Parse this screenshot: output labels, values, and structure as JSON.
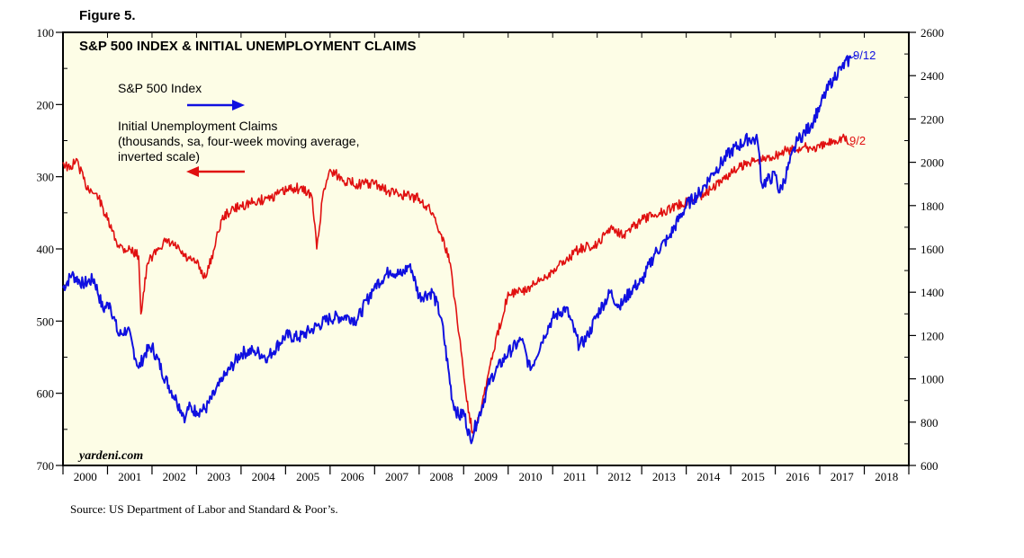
{
  "figure_label": "Figure 5.",
  "source": "Source: US Department of Labor and Standard & Poor’s.",
  "watermark": "yardeni.com",
  "colors": {
    "background": "#fdfde6",
    "sp500": "#1010e0",
    "claims": "#e01010",
    "frame": "#000000"
  },
  "chart_data": {
    "type": "line",
    "title": "S&P 500 INDEX & INITIAL UNEMPLOYMENT CLAIMS",
    "x_range": [
      2000.0,
      2019.0
    ],
    "x_tick_labels": [
      "2000",
      "2001",
      "2002",
      "2003",
      "2004",
      "2005",
      "2006",
      "2007",
      "2008",
      "2009",
      "2010",
      "2011",
      "2012",
      "2013",
      "2014",
      "2015",
      "2016",
      "2017",
      "2018"
    ],
    "left_axis": {
      "label": "Initial Unemployment Claims (thousands, sa, four-week moving average, inverted scale)",
      "inverted": true,
      "ylim": [
        100,
        700
      ],
      "ticks": [
        100,
        200,
        300,
        400,
        500,
        600,
        700
      ]
    },
    "right_axis": {
      "label": "S&P 500 Index",
      "ylim": [
        600,
        2600
      ],
      "ticks": [
        600,
        800,
        1000,
        1200,
        1400,
        1600,
        1800,
        2000,
        2200,
        2400,
        2600
      ]
    },
    "legend": [
      {
        "text": "S&P 500 Index",
        "arrow": "right"
      },
      {
        "lines": [
          "Initial Unemployment Claims",
          "(thousands, sa, four-week moving average,",
          "inverted scale)"
        ],
        "arrow": "left"
      }
    ],
    "annotations": {
      "sp500_end": "9/12",
      "claims_end": "9/2"
    },
    "series": [
      {
        "name": "S&P 500 Index",
        "axis": "right",
        "x": [
          2000.0,
          2000.2,
          2000.45,
          2000.7,
          2000.9,
          2001.05,
          2001.25,
          2001.45,
          2001.7,
          2001.85,
          2002.0,
          2002.3,
          2002.55,
          2002.75,
          2002.8,
          2003.0,
          2003.2,
          2003.6,
          2004.0,
          2004.3,
          2004.6,
          2005.0,
          2005.3,
          2005.6,
          2006.0,
          2006.4,
          2006.6,
          2007.0,
          2007.35,
          2007.6,
          2007.8,
          2008.0,
          2008.3,
          2008.5,
          2008.75,
          2008.9,
          2009.0,
          2009.15,
          2009.3,
          2009.6,
          2010.0,
          2010.3,
          2010.5,
          2010.8,
          2011.0,
          2011.3,
          2011.6,
          2011.8,
          2012.0,
          2012.3,
          2012.5,
          2012.8,
          2013.0,
          2013.3,
          2013.6,
          2014.0,
          2014.3,
          2014.6,
          2015.0,
          2015.4,
          2015.6,
          2015.7,
          2016.0,
          2016.1,
          2016.5,
          2016.8,
          2017.0,
          2017.3,
          2017.5,
          2017.7
        ],
        "values": [
          1420,
          1480,
          1440,
          1460,
          1320,
          1350,
          1200,
          1230,
          1050,
          1120,
          1150,
          1000,
          900,
          820,
          870,
          850,
          860,
          1000,
          1120,
          1130,
          1100,
          1200,
          1190,
          1230,
          1280,
          1290,
          1270,
          1430,
          1500,
          1480,
          1530,
          1380,
          1400,
          1280,
          900,
          820,
          850,
          720,
          800,
          1000,
          1120,
          1180,
          1040,
          1200,
          1280,
          1330,
          1150,
          1200,
          1300,
          1400,
          1330,
          1420,
          1450,
          1580,
          1650,
          1800,
          1860,
          1950,
          2050,
          2110,
          2100,
          1900,
          1940,
          1860,
          2100,
          2170,
          2260,
          2390,
          2440,
          2480
        ]
      },
      {
        "name": "Initial Unemployment Claims",
        "axis": "left",
        "x": [
          2000.0,
          2000.15,
          2000.3,
          2000.5,
          2000.8,
          2001.0,
          2001.2,
          2001.35,
          2001.5,
          2001.7,
          2001.75,
          2001.9,
          2002.1,
          2002.3,
          2002.5,
          2002.8,
          2003.0,
          2003.2,
          2003.4,
          2003.55,
          2003.7,
          2004.0,
          2004.3,
          2004.6,
          2004.8,
          2005.2,
          2005.5,
          2005.6,
          2005.7,
          2005.85,
          2006.0,
          2006.3,
          2006.6,
          2007.0,
          2007.3,
          2007.6,
          2008.0,
          2008.3,
          2008.5,
          2008.7,
          2008.9,
          2009.05,
          2009.2,
          2009.4,
          2009.6,
          2010.0,
          2010.3,
          2010.6,
          2011.0,
          2011.3,
          2011.6,
          2012.0,
          2012.3,
          2012.6,
          2013.0,
          2013.4,
          2013.8,
          2014.2,
          2014.6,
          2015.0,
          2015.4,
          2015.8,
          2016.2,
          2016.6,
          2017.0,
          2017.3,
          2017.55,
          2017.65
        ],
        "values": [
          280,
          290,
          275,
          310,
          330,
          360,
          390,
          400,
          400,
          410,
          490,
          420,
          400,
          390,
          395,
          415,
          420,
          440,
          400,
          360,
          350,
          340,
          335,
          330,
          325,
          315,
          320,
          330,
          400,
          320,
          290,
          305,
          310,
          310,
          320,
          325,
          330,
          350,
          380,
          420,
          520,
          600,
          655,
          620,
          560,
          460,
          460,
          450,
          430,
          415,
          400,
          395,
          370,
          380,
          360,
          350,
          340,
          330,
          315,
          295,
          280,
          275,
          265,
          260,
          260,
          250,
          245,
          255
        ]
      }
    ]
  }
}
